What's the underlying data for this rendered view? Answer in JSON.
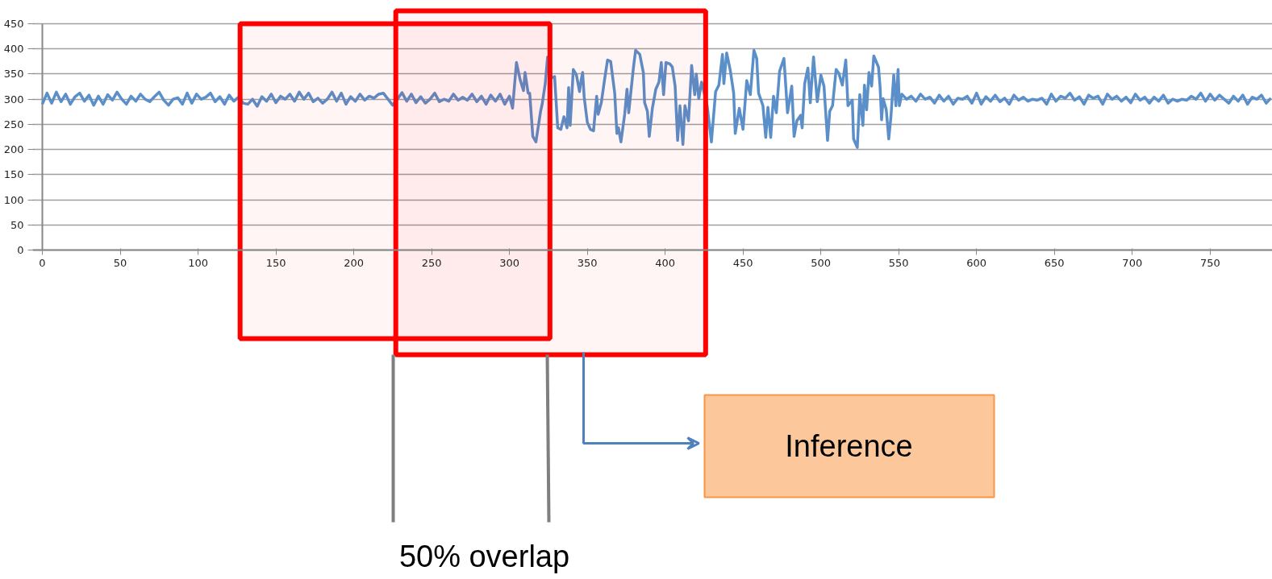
{
  "chart_data": {
    "type": "line",
    "x": [
      0,
      3,
      6,
      9,
      12,
      15,
      18,
      21,
      24,
      27,
      30,
      33,
      36,
      39,
      42,
      45,
      48,
      51,
      54,
      57,
      60,
      63,
      66,
      69,
      72,
      75,
      78,
      81,
      84,
      87,
      90,
      93,
      96,
      99,
      102,
      105,
      108,
      111,
      114,
      117,
      120,
      123,
      126,
      129,
      132,
      135,
      138,
      141,
      144,
      147,
      150,
      153,
      156,
      159,
      162,
      165,
      168,
      171,
      174,
      177,
      180,
      183,
      186,
      189,
      192,
      195,
      198,
      201,
      204,
      207,
      210,
      213,
      216,
      219,
      222,
      225,
      228,
      231,
      234,
      237,
      240,
      243,
      246,
      249,
      252,
      255,
      258,
      261,
      264,
      267,
      270,
      273,
      276,
      279,
      282,
      285,
      288,
      291,
      294,
      297,
      300,
      302,
      304.5,
      307,
      309,
      310,
      312,
      313,
      315,
      317,
      320,
      321,
      323,
      324.5,
      327,
      329,
      331,
      333,
      335,
      337,
      338,
      339,
      341,
      343,
      345,
      346,
      347,
      348,
      350,
      352,
      354,
      356,
      357,
      359,
      361,
      363,
      365,
      367.6,
      369,
      370,
      371.6,
      374,
      375.5,
      376.6,
      379.6,
      381,
      383.7,
      386,
      386.8,
      388.6,
      389.8,
      391.8,
      394,
      396,
      397.5,
      399,
      400.5,
      403,
      404.6,
      406.4,
      408,
      409.5,
      411.4,
      412.7,
      415,
      417,
      419,
      420,
      421.6,
      423.4,
      427,
      429.7,
      432.4,
      434.5,
      436.8,
      437.7,
      439.5,
      441.9,
      444,
      445,
      447.6,
      450,
      452.4,
      454.7,
      457,
      458.8,
      460,
      462.8,
      464.6,
      466,
      467.8,
      469.6,
      471.4,
      473.5,
      476.3,
      478.6,
      481.3,
      482.8,
      484.6,
      487,
      488,
      489.6,
      491.7,
      493.2,
      495.3,
      497.7,
      500,
      502,
      504.3,
      505.7,
      507.5,
      509.8,
      511.6,
      513.8,
      516,
      517.4,
      520.2,
      521,
      523.4,
      525,
      527,
      528,
      529.4,
      530.9,
      532.6,
      534,
      537,
      538,
      539,
      540,
      542,
      543.6,
      545,
      546.8,
      548.2,
      549.6,
      550.4,
      552,
      555,
      558,
      561,
      564,
      567,
      570,
      573,
      576,
      579,
      582,
      585,
      588,
      591,
      594,
      597,
      600,
      603,
      606,
      609,
      612,
      615,
      618,
      621,
      624,
      627,
      630,
      633,
      636,
      639,
      642,
      645,
      648,
      651,
      654,
      657,
      660,
      663,
      666,
      669,
      672,
      675,
      678,
      681,
      684,
      687,
      690,
      693,
      696,
      699,
      702,
      705,
      708,
      711,
      714,
      717,
      720,
      723,
      726,
      729,
      732,
      735,
      738,
      741,
      744,
      747,
      750,
      753,
      756,
      759,
      762,
      765,
      768,
      771,
      774,
      777,
      780,
      783,
      786,
      789
    ],
    "series": [
      {
        "color": "#5b8fc9",
        "values": [
          290,
          312,
          292,
          314,
          295,
          310,
          290,
          305,
          312,
          296,
          308,
          288,
          306,
          290,
          309,
          298,
          314,
          300,
          290,
          306,
          296,
          310,
          300,
          295,
          305,
          314,
          298,
          288,
          300,
          303,
          290,
          312,
          292,
          310,
          300,
          304,
          312,
          295,
          305,
          290,
          308,
          296,
          304,
          292,
          290,
          300,
          286,
          305,
          296,
          310,
          293,
          306,
          300,
          310,
          296,
          314,
          300,
          312,
          295,
          302,
          292,
          300,
          314,
          296,
          312,
          290,
          305,
          296,
          310,
          298,
          306,
          302,
          310,
          312,
          300,
          288,
          300,
          313,
          296,
          310,
          293,
          305,
          292,
          300,
          312,
          295,
          300,
          296,
          310,
          298,
          304,
          298,
          310,
          295,
          306,
          290,
          308,
          296,
          310,
          290,
          306,
          282,
          373,
          337,
          317,
          353,
          312,
          312,
          226,
          215,
          276,
          290,
          331,
          384,
          342,
          345,
          243,
          240,
          265,
          243,
          323,
          248,
          359,
          348,
          315,
          337,
          353,
          304,
          254,
          240,
          237,
          306,
          270,
          293,
          337,
          378,
          375,
          312,
          232,
          243,
          215,
          270,
          320,
          273,
          362,
          397,
          389,
          353,
          293,
          276,
          226,
          282,
          320,
          334,
          373,
          309,
          373,
          370,
          364,
          326,
          218,
          287,
          210,
          287,
          257,
          367,
          309,
          350,
          301,
          334,
          287,
          215,
          315,
          328,
          389,
          331,
          392,
          356,
          312,
          232,
          282,
          240,
          337,
          309,
          397,
          381,
          312,
          287,
          224,
          284,
          224,
          306,
          273,
          356,
          381,
          273,
          326,
          226,
          257,
          268,
          243,
          331,
          362,
          293,
          384,
          295,
          348,
          326,
          218,
          276,
          287,
          359,
          351,
          328,
          378,
          287,
          298,
          221,
          204,
          309,
          248,
          328,
          279,
          353,
          326,
          386,
          364,
          326,
          259,
          301,
          279,
          221,
          265,
          348,
          287,
          359,
          287,
          310,
          300,
          306,
          296,
          310,
          300,
          304,
          292,
          308,
          296,
          306,
          290,
          302,
          300,
          306,
          292,
          312,
          290,
          305,
          296,
          308,
          295,
          302,
          290,
          308,
          298,
          304,
          296,
          300,
          298,
          302,
          290,
          310,
          296,
          306,
          302,
          312,
          298,
          305,
          290,
          308,
          302,
          306,
          290,
          310,
          300,
          306,
          296,
          304,
          293,
          310,
          298,
          304,
          292,
          304,
          296,
          308,
          292,
          300,
          296,
          300,
          298,
          306,
          300,
          312,
          296,
          310,
          298,
          308,
          300,
          292,
          306,
          296,
          308,
          290,
          304,
          300,
          308,
          292,
          302
        ]
      }
    ],
    "xlim": [
      0,
      790
    ],
    "ylim": [
      0,
      450
    ],
    "xticks": [
      0,
      50,
      100,
      150,
      200,
      250,
      300,
      350,
      400,
      450,
      500,
      550,
      600,
      650,
      700,
      750
    ],
    "yticks": [
      0,
      50,
      100,
      150,
      200,
      250,
      300,
      350,
      400,
      450
    ],
    "grid": "y",
    "line_style": "solid",
    "marker": "none",
    "bands": [
      {
        "axis": "x",
        "from": 127,
        "to": 326,
        "color": "#ff0000"
      },
      {
        "axis": "x",
        "from": 227,
        "to": 426,
        "color": "#ff0000"
      }
    ],
    "annotations": [
      "Inference",
      "50% overlap"
    ]
  }
}
